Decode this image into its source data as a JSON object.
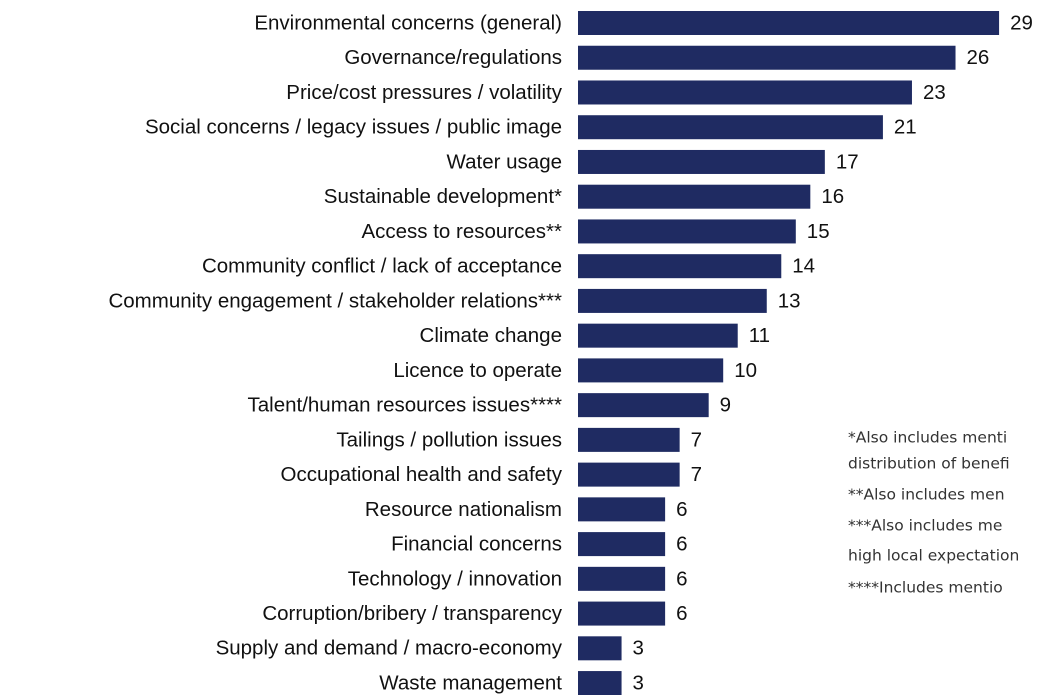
{
  "chart_data": {
    "type": "bar",
    "orientation": "horizontal",
    "color": "#1f2b62",
    "categories": [
      "Environmental concerns (general)",
      "Governance/regulations",
      "Price/cost pressures / volatility",
      "Social concerns / legacy issues / public image",
      "Water usage",
      "Sustainable development*",
      "Access to resources**",
      "Community conflict / lack of acceptance",
      "Community engagement / stakeholder relations***",
      "Climate change",
      "Licence to operate",
      "Talent/human resources issues****",
      "Tailings / pollution issues",
      "Occupational health and safety",
      "Resource nationalism",
      "Financial concerns",
      "Technology / innovation",
      "Corruption/bribery / transparency",
      "Supply and demand / macro-economy",
      "Waste management"
    ],
    "values": [
      29,
      26,
      23,
      21,
      17,
      16,
      15,
      14,
      13,
      11,
      10,
      9,
      7,
      7,
      6,
      6,
      6,
      6,
      3,
      3
    ],
    "footnotes": [
      "*Also includes menti",
      "distribution of benefi",
      "**Also includes men",
      "***Also includes me",
      "high local expectation",
      "****Includes mentio"
    ]
  }
}
